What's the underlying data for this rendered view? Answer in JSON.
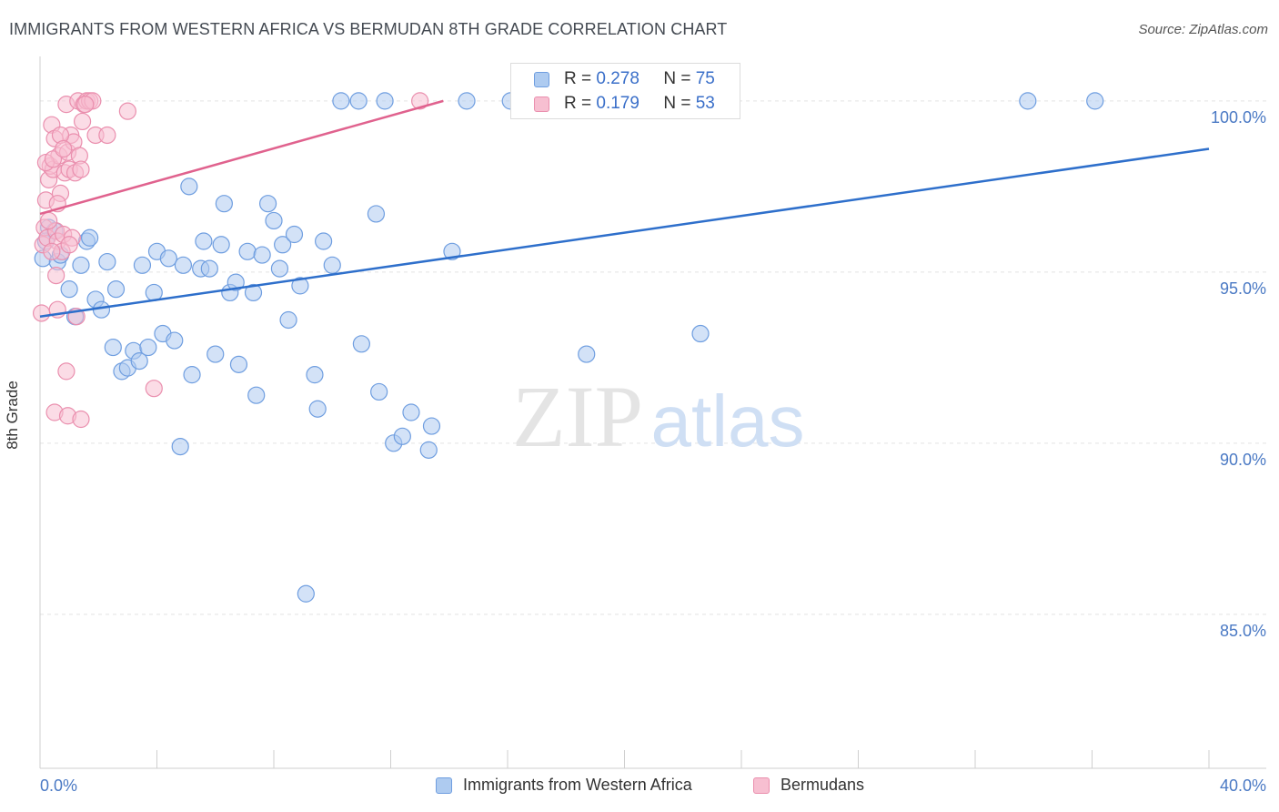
{
  "title": "IMMIGRANTS FROM WESTERN AFRICA VS BERMUDAN 8TH GRADE CORRELATION CHART",
  "source": "Source: ZipAtlas.com",
  "watermark": {
    "zip": "ZIP",
    "atlas": "atlas"
  },
  "colors": {
    "blue_fill": "#aecbf0",
    "blue_stroke": "#6f9ee0",
    "blue_line": "#2e6fcb",
    "pink_fill": "#f7bfd1",
    "pink_stroke": "#ea8fae",
    "pink_line": "#e0628e",
    "grid": "#e3e3e3",
    "tick_label": "#4a79c4"
  },
  "legend_top": {
    "rows": [
      {
        "series": "blue",
        "r_label": "R =",
        "r_value": "0.278",
        "n_label": "N =",
        "n_value": "75"
      },
      {
        "series": "pink",
        "r_label": "R =",
        "r_value": "0.179",
        "n_label": "N =",
        "n_value": "53"
      }
    ]
  },
  "legend_bottom": [
    {
      "series": "blue",
      "label": "Immigrants from Western Africa"
    },
    {
      "series": "pink",
      "label": "Bermudans"
    }
  ],
  "chart_data": {
    "type": "scatter",
    "title": "IMMIGRANTS FROM WESTERN AFRICA VS BERMUDAN 8TH GRADE CORRELATION CHART",
    "xlabel": "",
    "ylabel": "8th Grade",
    "xlim": [
      0,
      40
    ],
    "ylim": [
      80.5,
      101.3
    ],
    "x_tick_labels": [
      "0.0%",
      "40.0%"
    ],
    "y_ticks": [
      {
        "value": 85,
        "label": "85.0%"
      },
      {
        "value": 90,
        "label": "90.0%"
      },
      {
        "value": 95,
        "label": "95.0%"
      },
      {
        "value": 100,
        "label": "100.0%"
      }
    ],
    "grid": true,
    "series": [
      {
        "name": "Immigrants from Western Africa",
        "color": "blue",
        "trend": {
          "x": [
            0,
            40
          ],
          "y": [
            93.7,
            98.6
          ]
        },
        "points": [
          [
            0.1,
            95.4
          ],
          [
            0.3,
            96.3
          ],
          [
            0.5,
            96.2
          ],
          [
            0.6,
            95.3
          ],
          [
            0.7,
            95.5
          ],
          [
            1.0,
            94.5
          ],
          [
            1.2,
            93.7
          ],
          [
            1.4,
            95.2
          ],
          [
            1.6,
            95.9
          ],
          [
            1.7,
            96.0
          ],
          [
            1.9,
            94.2
          ],
          [
            2.1,
            93.9
          ],
          [
            2.3,
            95.3
          ],
          [
            2.5,
            92.8
          ],
          [
            2.6,
            94.5
          ],
          [
            2.8,
            92.1
          ],
          [
            3.0,
            92.2
          ],
          [
            3.2,
            92.7
          ],
          [
            3.4,
            92.4
          ],
          [
            3.5,
            95.2
          ],
          [
            3.7,
            92.8
          ],
          [
            3.9,
            94.4
          ],
          [
            4.0,
            95.6
          ],
          [
            4.2,
            93.2
          ],
          [
            4.4,
            95.4
          ],
          [
            4.6,
            93.0
          ],
          [
            4.8,
            89.9
          ],
          [
            4.9,
            95.2
          ],
          [
            5.1,
            97.5
          ],
          [
            5.2,
            92.0
          ],
          [
            5.5,
            95.1
          ],
          [
            5.6,
            95.9
          ],
          [
            5.8,
            95.1
          ],
          [
            6.0,
            92.6
          ],
          [
            6.2,
            95.8
          ],
          [
            6.3,
            97.0
          ],
          [
            6.5,
            94.4
          ],
          [
            6.7,
            94.7
          ],
          [
            6.8,
            92.3
          ],
          [
            7.1,
            95.6
          ],
          [
            7.3,
            94.4
          ],
          [
            7.4,
            91.4
          ],
          [
            7.6,
            95.5
          ],
          [
            7.8,
            97.0
          ],
          [
            8.0,
            96.5
          ],
          [
            8.2,
            95.1
          ],
          [
            8.3,
            95.8
          ],
          [
            8.5,
            93.6
          ],
          [
            8.7,
            96.1
          ],
          [
            8.9,
            94.6
          ],
          [
            9.1,
            85.6
          ],
          [
            9.4,
            92.0
          ],
          [
            9.5,
            91.0
          ],
          [
            9.7,
            95.9
          ],
          [
            10.0,
            95.2
          ],
          [
            10.3,
            100.0
          ],
          [
            10.9,
            100.0
          ],
          [
            11.0,
            92.9
          ],
          [
            11.5,
            96.7
          ],
          [
            11.6,
            91.5
          ],
          [
            11.8,
            100.0
          ],
          [
            12.1,
            90.0
          ],
          [
            12.4,
            90.2
          ],
          [
            12.7,
            90.9
          ],
          [
            13.3,
            89.8
          ],
          [
            13.4,
            90.5
          ],
          [
            14.1,
            95.6
          ],
          [
            14.6,
            100.0
          ],
          [
            16.1,
            100.0
          ],
          [
            16.7,
            100.0
          ],
          [
            18.7,
            92.6
          ],
          [
            22.6,
            93.2
          ],
          [
            33.8,
            100.0
          ],
          [
            36.1,
            100.0
          ],
          [
            0.2,
            95.9
          ]
        ]
      },
      {
        "name": "Bermudans",
        "color": "pink",
        "trend": {
          "x": [
            0,
            13.8
          ],
          "y": [
            96.7,
            100.0
          ]
        },
        "points": [
          [
            0.05,
            93.8
          ],
          [
            0.1,
            95.8
          ],
          [
            0.15,
            96.3
          ],
          [
            0.2,
            97.1
          ],
          [
            0.25,
            96.0
          ],
          [
            0.3,
            97.7
          ],
          [
            0.35,
            98.1
          ],
          [
            0.4,
            99.3
          ],
          [
            0.45,
            98.0
          ],
          [
            0.5,
            98.9
          ],
          [
            0.55,
            96.2
          ],
          [
            0.6,
            95.9
          ],
          [
            0.65,
            98.4
          ],
          [
            0.7,
            97.3
          ],
          [
            0.75,
            95.6
          ],
          [
            0.8,
            96.1
          ],
          [
            0.85,
            97.9
          ],
          [
            0.9,
            99.9
          ],
          [
            0.95,
            98.5
          ],
          [
            1.0,
            98.0
          ],
          [
            1.05,
            99.0
          ],
          [
            1.1,
            96.0
          ],
          [
            1.15,
            98.8
          ],
          [
            1.2,
            97.9
          ],
          [
            1.3,
            100.0
          ],
          [
            1.35,
            98.4
          ],
          [
            1.4,
            98.0
          ],
          [
            1.45,
            99.4
          ],
          [
            1.5,
            99.9
          ],
          [
            1.6,
            100.0
          ],
          [
            1.7,
            100.0
          ],
          [
            1.8,
            100.0
          ],
          [
            1.9,
            99.0
          ],
          [
            2.3,
            99.0
          ],
          [
            3.0,
            99.7
          ],
          [
            0.55,
            94.9
          ],
          [
            0.6,
            93.9
          ],
          [
            0.5,
            90.9
          ],
          [
            0.95,
            90.8
          ],
          [
            1.4,
            90.7
          ],
          [
            0.9,
            92.1
          ],
          [
            3.9,
            91.6
          ],
          [
            13.0,
            100.0
          ],
          [
            0.3,
            96.5
          ],
          [
            0.4,
            95.6
          ],
          [
            0.6,
            97.0
          ],
          [
            0.7,
            99.0
          ],
          [
            1.0,
            95.8
          ],
          [
            0.2,
            98.2
          ],
          [
            0.45,
            98.3
          ],
          [
            1.25,
            93.7
          ],
          [
            0.8,
            98.6
          ],
          [
            1.55,
            99.9
          ]
        ]
      }
    ]
  }
}
